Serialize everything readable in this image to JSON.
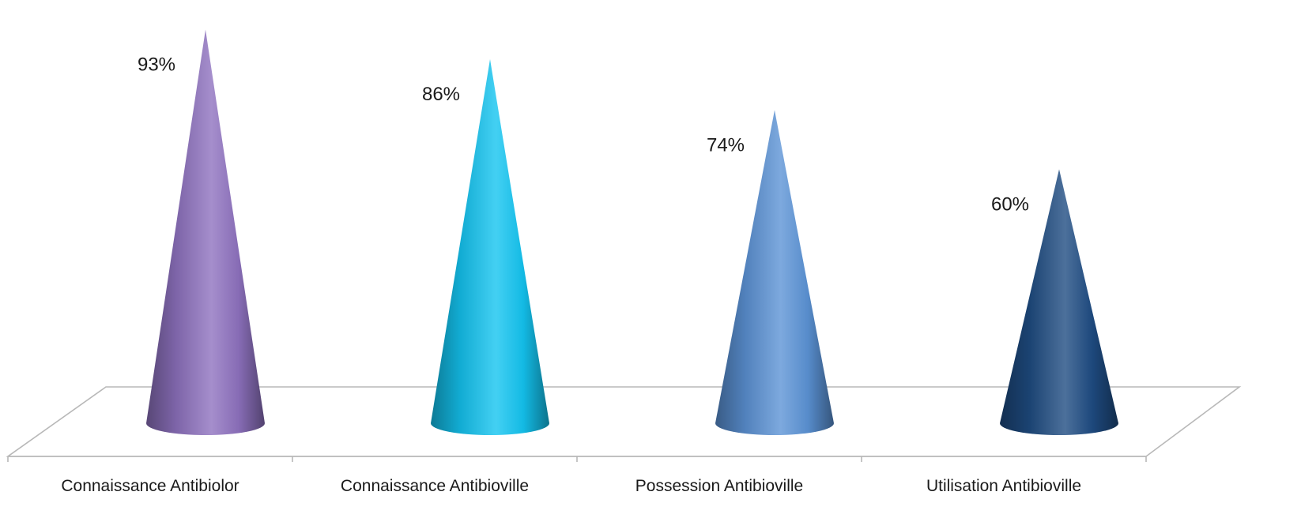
{
  "chart_data": {
    "type": "bar",
    "bar_shape": "cone-3d",
    "categories": [
      "Connaissance Antibiolor",
      "Connaissance Antibioville",
      "Possession Antibioville",
      "Utilisation Antibioville"
    ],
    "values": [
      93,
      86,
      74,
      60
    ],
    "value_labels": [
      "93%",
      "86%",
      "74%",
      "60%"
    ],
    "colors": [
      "#8e72bf",
      "#14c4f0",
      "#5c93d6",
      "#1f4c82"
    ],
    "ylim": [
      0,
      100
    ],
    "title": "",
    "xlabel": "",
    "ylabel": "",
    "grid": false,
    "legend": "none"
  }
}
